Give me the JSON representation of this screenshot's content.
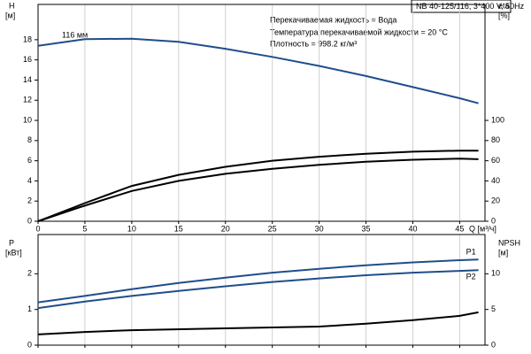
{
  "chart_data": [
    {
      "type": "line",
      "title": "NB 40-125/116, 3*400 V, 50Hz",
      "info": [
        "Перекачиваемая жидкость = Вода",
        "Температура перекачиваемой жидкости = 20 °C",
        "Плотность = 998.2 кг/м³"
      ],
      "annotation": "116 мм",
      "xlabel": "Q [м³/ч]",
      "ylabel": "H",
      "yunit": "[м]",
      "y2label": "eta",
      "y2unit": "[%]",
      "xlim": [
        0,
        47.7
      ],
      "xticks": [
        0,
        5,
        10,
        15,
        20,
        25,
        30,
        35,
        40,
        45
      ],
      "ylim": [
        0,
        21.5
      ],
      "yticks": [
        0,
        2,
        4,
        6,
        8,
        10,
        12,
        14,
        16,
        18
      ],
      "y2lim": [
        0,
        215
      ],
      "y2ticks": [
        0,
        20,
        40,
        60,
        80,
        100
      ],
      "grid": "x",
      "series": [
        {
          "color": "#1f4e8c",
          "x": [
            0,
            5,
            10,
            15,
            20,
            25,
            30,
            35,
            40,
            45,
            47
          ],
          "values": [
            17.4,
            18.05,
            18.1,
            17.8,
            17.1,
            16.3,
            15.4,
            14.4,
            13.3,
            12.2,
            11.7
          ]
        },
        {
          "color": "#000000",
          "axis": "y2",
          "x": [
            0,
            5,
            10,
            15,
            20,
            25,
            30,
            35,
            40,
            45,
            47
          ],
          "values": [
            0,
            18,
            35,
            46,
            54,
            60,
            64,
            67,
            69,
            70,
            70
          ]
        },
        {
          "color": "#000000",
          "axis": "y2",
          "x": [
            0,
            4.5,
            10,
            15,
            20,
            25,
            30,
            35,
            40,
            45,
            47
          ],
          "values": [
            0,
            14,
            30,
            40,
            47,
            52,
            56,
            59,
            61,
            62,
            61.5
          ]
        }
      ]
    },
    {
      "type": "line",
      "ylabel": "P",
      "yunit": "[кВт]",
      "y2label": "NPSH",
      "y2unit": "[м]",
      "xlim": [
        0,
        47.7
      ],
      "xticks": [
        0,
        5,
        10,
        15,
        20,
        25,
        30,
        35,
        40,
        45
      ],
      "ylim": [
        0,
        3.1
      ],
      "yticks": [
        0,
        1,
        2
      ],
      "y2lim": [
        0,
        15.5
      ],
      "y2ticks": [
        0,
        5,
        10
      ],
      "grid": "x",
      "series": [
        {
          "name": "P1",
          "color": "#1f4e8c",
          "x": [
            0,
            5,
            10,
            15,
            20,
            25,
            30,
            35,
            40,
            45,
            47
          ],
          "values": [
            1.2,
            1.38,
            1.57,
            1.74,
            1.89,
            2.03,
            2.14,
            2.24,
            2.32,
            2.38,
            2.4
          ]
        },
        {
          "name": "P2",
          "color": "#1f4e8c",
          "x": [
            0,
            5,
            10,
            15,
            20,
            25,
            30,
            35,
            40,
            45,
            47
          ],
          "values": [
            1.04,
            1.22,
            1.38,
            1.52,
            1.65,
            1.77,
            1.87,
            1.96,
            2.03,
            2.08,
            2.1
          ]
        },
        {
          "color": "#000000",
          "axis": "y2",
          "x": [
            0,
            5,
            10,
            20,
            30,
            35,
            40,
            45,
            47
          ],
          "values": [
            1.5,
            1.85,
            2.1,
            2.35,
            2.6,
            3,
            3.5,
            4.1,
            4.6
          ]
        }
      ]
    }
  ]
}
